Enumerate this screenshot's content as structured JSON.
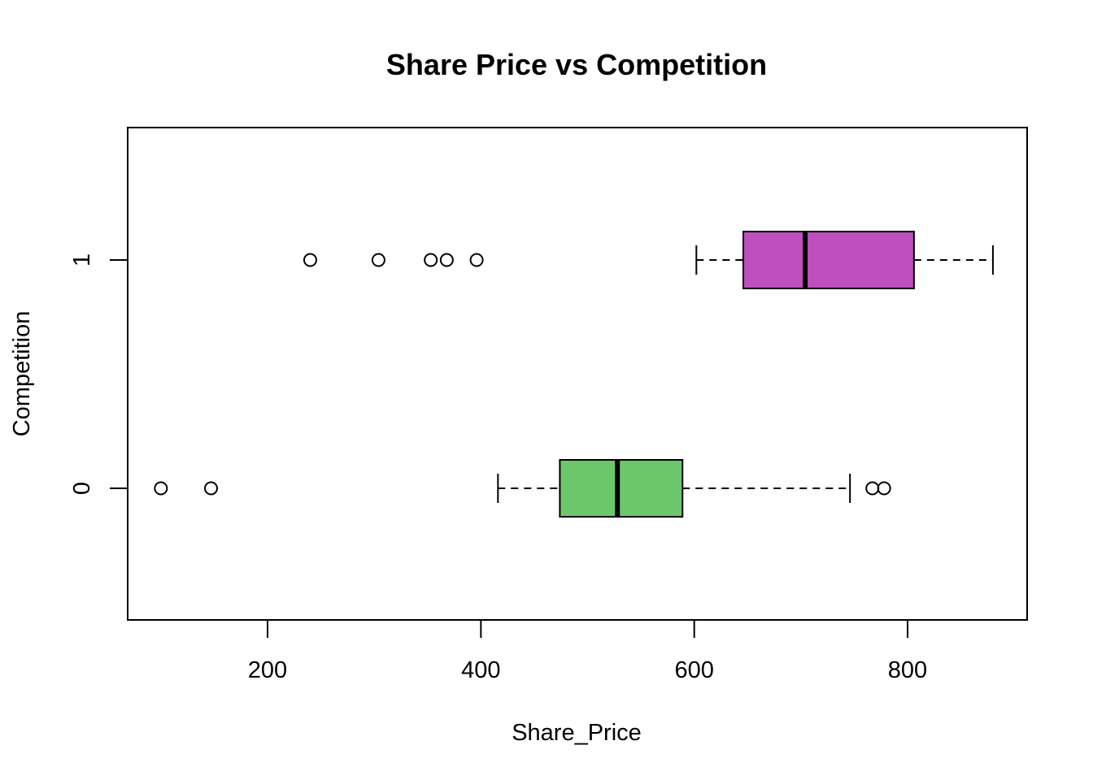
{
  "chart_data": {
    "type": "boxplot",
    "orientation": "horizontal",
    "title": "Share Price vs Competition",
    "xlabel": "Share_Price",
    "ylabel": "Competition",
    "xlim": [
      70,
      910
    ],
    "xticks": [
      200,
      400,
      600,
      800
    ],
    "xtick_labels": [
      "200",
      "400",
      "600",
      "800"
    ],
    "categories": [
      "0",
      "1"
    ],
    "grid": false,
    "legend": "none",
    "series": [
      {
        "category": "0",
        "color": "#6CC76A",
        "whisker_low": 416,
        "q1": 474,
        "median": 528,
        "q3": 589,
        "whisker_high": 746,
        "outliers": [
          100,
          147,
          767,
          778
        ]
      },
      {
        "category": "1",
        "color": "#BF4FBF",
        "whisker_low": 602,
        "q1": 646,
        "median": 704,
        "q3": 806,
        "whisker_high": 880,
        "outliers": [
          240,
          304,
          353,
          368,
          396
        ]
      }
    ]
  }
}
